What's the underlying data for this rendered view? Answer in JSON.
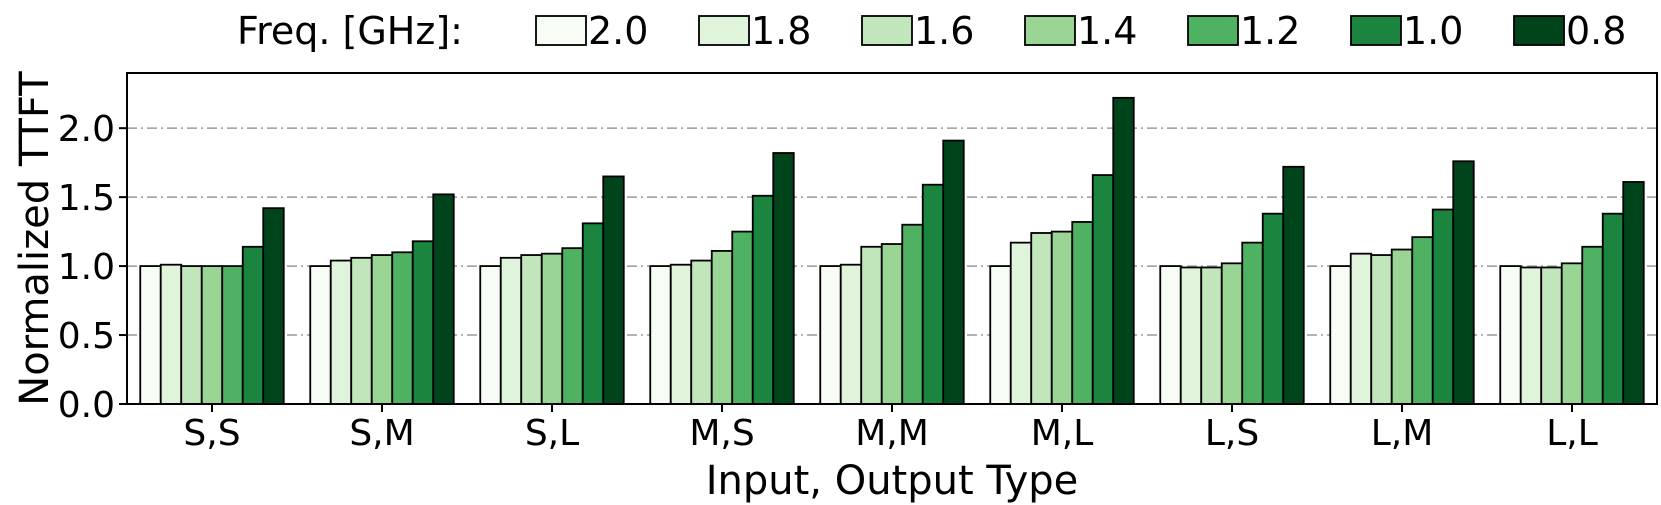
{
  "chart_data": {
    "type": "bar",
    "xlabel": "Input, Output Type",
    "ylabel": "Normalized TTFT",
    "ylim": [
      0,
      2.4
    ],
    "yticks": [
      "0.0",
      "0.5",
      "1.0",
      "1.5",
      "2.0"
    ],
    "grid": "horizontal dash-dot",
    "legend_title": "Freq. [GHz]:",
    "legend_position": "top",
    "categories": [
      "S,S",
      "S,M",
      "S,L",
      "M,S",
      "M,M",
      "M,L",
      "L,S",
      "L,M",
      "L,L"
    ],
    "series": [
      {
        "name": "2.0",
        "color": "#f7fcf5",
        "values": [
          1.0,
          1.0,
          1.0,
          1.0,
          1.0,
          1.0,
          1.0,
          1.0,
          1.0
        ]
      },
      {
        "name": "1.8",
        "color": "#e0f3db",
        "values": [
          1.01,
          1.04,
          1.06,
          1.01,
          1.01,
          1.17,
          0.99,
          1.09,
          0.99
        ]
      },
      {
        "name": "1.6",
        "color": "#c2e6bb",
        "values": [
          1.0,
          1.06,
          1.08,
          1.04,
          1.14,
          1.24,
          0.99,
          1.08,
          0.99
        ]
      },
      {
        "name": "1.4",
        "color": "#9ad595",
        "values": [
          1.0,
          1.08,
          1.09,
          1.11,
          1.16,
          1.25,
          1.02,
          1.12,
          1.02
        ]
      },
      {
        "name": "1.2",
        "color": "#4fb162",
        "values": [
          1.0,
          1.1,
          1.13,
          1.25,
          1.3,
          1.32,
          1.17,
          1.21,
          1.14
        ]
      },
      {
        "name": "1.0",
        "color": "#1b843e",
        "values": [
          1.14,
          1.18,
          1.31,
          1.51,
          1.59,
          1.66,
          1.38,
          1.41,
          1.38
        ]
      },
      {
        "name": "0.8",
        "color": "#00441b",
        "values": [
          1.42,
          1.52,
          1.65,
          1.82,
          1.91,
          2.22,
          1.72,
          1.76,
          1.61
        ]
      }
    ]
  }
}
